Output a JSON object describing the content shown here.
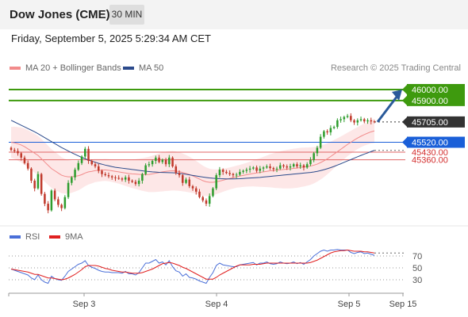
{
  "header": {
    "title": "Dow Jones (CME)",
    "timeframe": "30 MIN"
  },
  "datetime": "Friday, September 5, 2025 5:29:34 AM CET",
  "legend": {
    "ma20": {
      "label": "MA 20 + Bollinger Bands",
      "color": "#f28b8b"
    },
    "ma50": {
      "label": "MA 50",
      "color": "#2b4a8b"
    },
    "credit": "Research © 2025 Trading Central"
  },
  "rsi_legend": {
    "rsi": {
      "label": "RSI",
      "color": "#4a6fd8"
    },
    "ma9": {
      "label": "9MA",
      "color": "#e02020"
    }
  },
  "colors": {
    "resistance": "#3e9a0e",
    "pivot": "#1a5fd8",
    "support": "#e06666",
    "current": "#333333",
    "arrow": "#2a5a9a",
    "candle_up": "#2e9d2e",
    "candle_down": "#c0392b",
    "band_fill": "#fde3e3"
  },
  "chart_data": [
    {
      "type": "candlestick",
      "title": "",
      "x_ticks": [
        "Sep 3",
        "Sep 4",
        "Sep 5",
        "Sep 15"
      ],
      "ylim": [
        44780,
        46130
      ],
      "levels": [
        {
          "label": "46000.00",
          "value": 46000,
          "kind": "resistance"
        },
        {
          "label": "45900.00",
          "value": 45900,
          "kind": "resistance"
        },
        {
          "label": "45705.00",
          "value": 45705,
          "kind": "current"
        },
        {
          "label": "45520.00",
          "value": 45520,
          "kind": "pivot"
        },
        {
          "label": "45430.00",
          "value": 45430,
          "kind": "support"
        },
        {
          "label": "45360.00",
          "value": 45360,
          "kind": "support"
        }
      ],
      "close": [
        45450,
        45440,
        45420,
        45380,
        45330,
        45280,
        45170,
        45100,
        45230,
        45050,
        44960,
        44900,
        45080,
        45000,
        44950,
        44920,
        45020,
        45150,
        45200,
        45270,
        45330,
        45390,
        45460,
        45350,
        45320,
        45300,
        45260,
        45230,
        45220,
        45210,
        45200,
        45195,
        45190,
        45180,
        45200,
        45170,
        45160,
        45140,
        45170,
        45230,
        45310,
        45320,
        45350,
        45380,
        45340,
        45360,
        45320,
        45380,
        45300,
        45240,
        45220,
        45150,
        45180,
        45120,
        45100,
        45070,
        45020,
        44990,
        44960,
        45030,
        45100,
        45220,
        45270,
        45250,
        45240,
        45230,
        45220,
        45225,
        45250,
        45260,
        45270,
        45280,
        45290,
        45260,
        45280,
        45290,
        45300,
        45285,
        45275,
        45280,
        45310,
        45300,
        45290,
        45300,
        45320,
        45300,
        45310,
        45290,
        45320,
        45360,
        45420,
        45470,
        45570,
        45620,
        45610,
        45650,
        45660,
        45720,
        45730,
        45750,
        45760,
        45720,
        45700,
        45720,
        45730,
        45710,
        45720,
        45710,
        45705
      ],
      "ma20": [
        45520,
        45515,
        45505,
        45495,
        45480,
        45460,
        45440,
        45420,
        45400,
        45370,
        45340,
        45310,
        45280,
        45260,
        45240,
        45220,
        45210,
        45205,
        45205,
        45210,
        45215,
        45225,
        45240,
        45250,
        45255,
        45262,
        45265,
        45266,
        45268,
        45265,
        45260,
        45255,
        45250,
        45245,
        45240,
        45235,
        45232,
        45230,
        45228,
        45226,
        45226,
        45227,
        45232,
        45238,
        45244,
        45250,
        45255,
        45258,
        45260,
        45258,
        45252,
        45245,
        45236,
        45226,
        45214,
        45200,
        45185,
        45170,
        45160,
        45155,
        45155,
        45160,
        45166,
        45174,
        45182,
        45190,
        45198,
        45206,
        45212,
        45218,
        45224,
        45230,
        45236,
        45240,
        45245,
        45250,
        45255,
        45260,
        45263,
        45266,
        45269,
        45272,
        45275,
        45278,
        45282,
        45285,
        45290,
        45294,
        45298,
        45303,
        45311,
        45321,
        45335,
        45351,
        45369,
        45390,
        45412,
        45434,
        45456,
        45478,
        45500,
        45520,
        45540,
        45558,
        45575,
        45590,
        45603,
        45615,
        45624
      ],
      "ma50": [
        45720,
        45705,
        45690,
        45675,
        45660,
        45645,
        45630,
        45615,
        45598,
        45580,
        45562,
        45544,
        45526,
        45508,
        45490,
        45472,
        45456,
        45440,
        45425,
        45410,
        45396,
        45382,
        45370,
        45358,
        45348,
        45338,
        45328,
        45320,
        45312,
        45305,
        45298,
        45292,
        45288,
        45284,
        45280,
        45276,
        45272,
        45268,
        45264,
        45260,
        45256,
        45253,
        45250,
        45248,
        45246,
        45245,
        45244,
        45243,
        45242,
        45240,
        45237,
        45233,
        45228,
        45223,
        45218,
        45213,
        45208,
        45203,
        45199,
        45195,
        45192,
        45190,
        45188,
        45187,
        45186,
        45186,
        45186,
        45187,
        45188,
        45190,
        45192,
        45194,
        45196,
        45198,
        45200,
        45203,
        45206,
        45209,
        45212,
        45215,
        45218,
        45221,
        45224,
        45227,
        45230,
        45233,
        45236,
        45239,
        45242,
        45245,
        45249,
        45255,
        45262,
        45270,
        45279,
        45289,
        45300,
        45312,
        45324,
        45337,
        45350,
        45362,
        45375,
        45388,
        45400,
        45412,
        45423,
        45435,
        45446
      ],
      "rsi_ylim": [
        10,
        90
      ],
      "rsi_ticks": [
        "70",
        "50",
        "30"
      ],
      "rsi": [
        48,
        46,
        44,
        42,
        40,
        38,
        33,
        30,
        38,
        30,
        26,
        24,
        36,
        32,
        30,
        29,
        36,
        44,
        48,
        52,
        56,
        58,
        62,
        54,
        51,
        49,
        46,
        44,
        43,
        43,
        42,
        42,
        42,
        41,
        44,
        40,
        40,
        38,
        42,
        50,
        58,
        58,
        61,
        64,
        58,
        60,
        55,
        62,
        52,
        45,
        43,
        36,
        40,
        34,
        33,
        31,
        28,
        26,
        24,
        34,
        42,
        54,
        58,
        55,
        54,
        53,
        52,
        52,
        55,
        56,
        57,
        58,
        59,
        55,
        58,
        58,
        60,
        57,
        56,
        57,
        60,
        58,
        57,
        58,
        60,
        57,
        59,
        56,
        60,
        64,
        70,
        74,
        78,
        80,
        78,
        80,
        80,
        81,
        80,
        80,
        80,
        76,
        74,
        76,
        77,
        74,
        75,
        73,
        71
      ],
      "rsi_ma9": [
        48,
        47,
        46,
        45,
        44,
        43,
        41,
        39,
        39,
        37,
        35,
        33,
        33,
        32,
        31,
        30,
        31,
        33,
        36,
        39,
        43,
        47,
        52,
        54,
        54,
        54,
        53,
        51,
        49,
        48,
        46,
        45,
        44,
        43,
        43,
        42,
        41,
        41,
        41,
        42,
        44,
        46,
        48,
        51,
        54,
        57,
        58,
        59,
        58,
        56,
        54,
        51,
        49,
        46,
        43,
        40,
        37,
        34,
        31,
        31,
        31,
        34,
        38,
        41,
        44,
        47,
        50,
        53,
        55,
        55,
        55,
        55,
        56,
        56,
        56,
        57,
        58,
        58,
        58,
        58,
        58,
        58,
        58,
        58,
        58,
        58,
        58,
        58,
        58,
        59,
        61,
        63,
        66,
        69,
        72,
        75,
        77,
        78,
        79,
        79,
        80,
        79,
        78,
        78,
        78,
        77,
        77,
        76,
        75
      ]
    }
  ]
}
